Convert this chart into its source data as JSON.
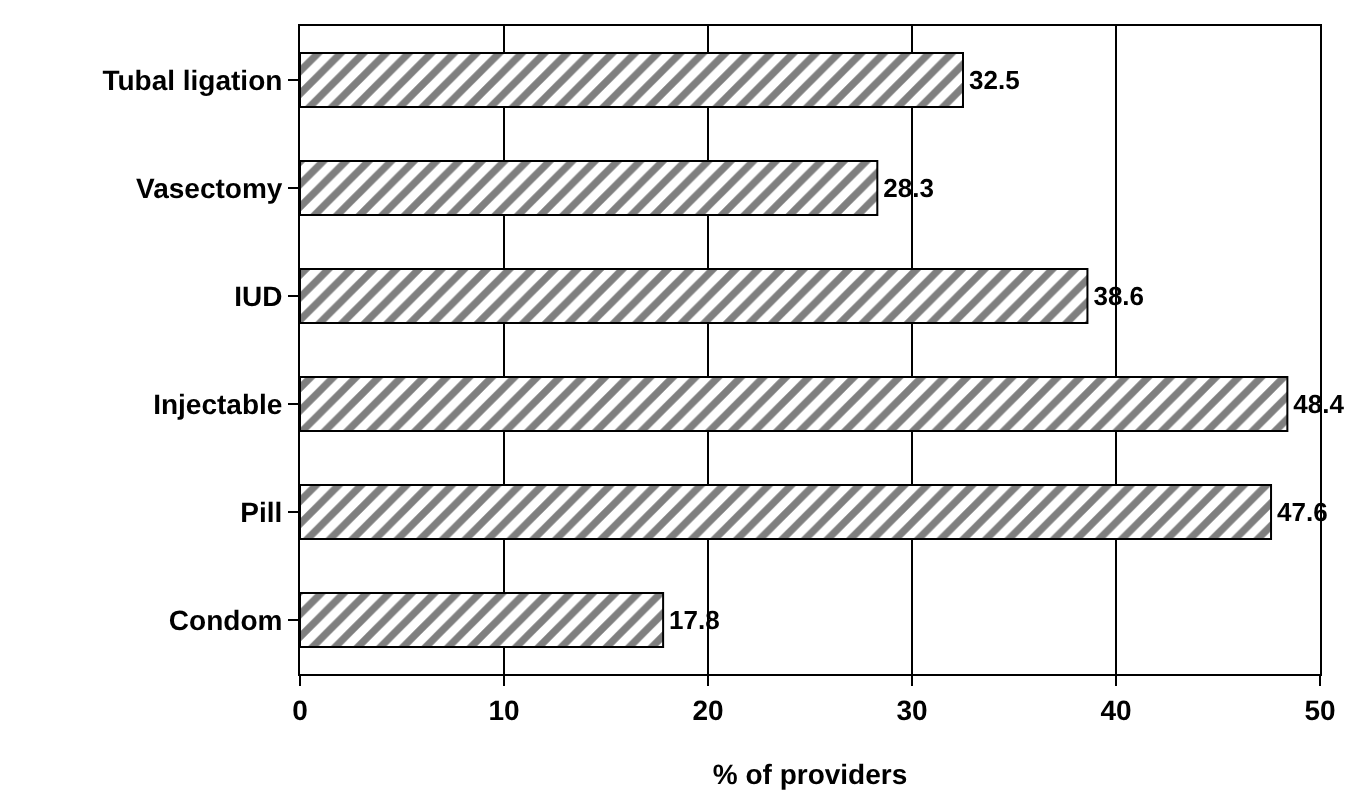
{
  "chart_data": {
    "type": "bar",
    "orientation": "horizontal",
    "xlabel": "% of providers",
    "categories": [
      "Tubal ligation",
      "Vasectomy",
      "IUD",
      "Injectable",
      "Pill",
      "Condom"
    ],
    "values": [
      32.5,
      28.3,
      38.6,
      48.4,
      47.6,
      17.8
    ],
    "color": "#000000",
    "xlim": [
      0,
      50
    ],
    "xticks": [
      0,
      10,
      20,
      30,
      40,
      50
    ],
    "grid": "x",
    "data_labels": true
  }
}
